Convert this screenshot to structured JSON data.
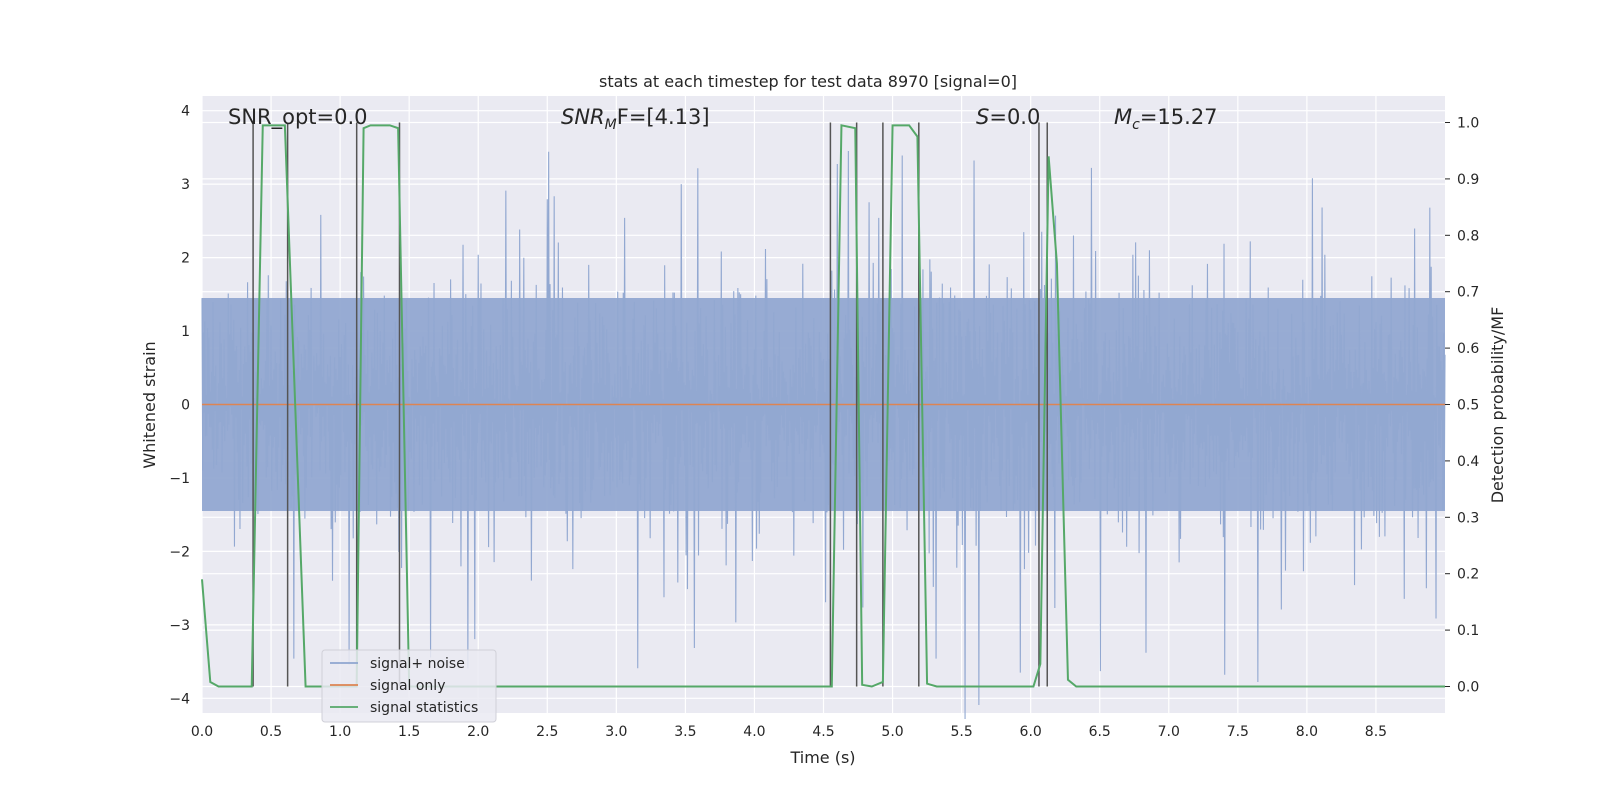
{
  "chart_data": {
    "type": "line",
    "title": "stats at each timestep for test data 8970 [signal=0]",
    "xlabel": "Time (s)",
    "ylabel": "Whitened strain",
    "ylabel_right": "Detection probability/MF",
    "xlim": [
      0.0,
      9.0
    ],
    "ylim": [
      -4.2,
      4.2
    ],
    "ylim_right": [
      -0.047,
      1.047
    ],
    "xticks": [
      "0.0",
      "0.5",
      "1.0",
      "1.5",
      "2.0",
      "2.5",
      "3.0",
      "3.5",
      "4.0",
      "4.5",
      "5.0",
      "5.5",
      "6.0",
      "6.5",
      "7.0",
      "7.5",
      "8.0",
      "8.5"
    ],
    "yticks": [
      "4",
      "3",
      "2",
      "1",
      "0",
      "−1",
      "−2",
      "−3",
      "−4"
    ],
    "yticks_right": [
      "1.0",
      "0.9",
      "0.8",
      "0.7",
      "0.6",
      "0.5",
      "0.4",
      "0.3",
      "0.2",
      "0.1",
      "0.0"
    ],
    "grid": true,
    "annotations": [
      {
        "text": "SNR_opt=0.0",
        "x": 0.19
      },
      {
        "text": "F=[4.13]",
        "prefix": "SNR",
        "sub": "M",
        "x": 2.6
      },
      {
        "text": "=0.0",
        "prefix": "S",
        "x": 5.6
      },
      {
        "text": "=15.27",
        "prefix": "M",
        "sub": "c",
        "x": 6.6
      }
    ],
    "legend": {
      "placement": "lower-left",
      "entries": [
        {
          "label": "signal+ noise",
          "color": "#8fa6cf"
        },
        {
          "label": "signal only",
          "color": "#dd8452"
        },
        {
          "label": "signal statistics",
          "color": "#55a868"
        }
      ]
    },
    "series": [
      {
        "name": "signal+ noise",
        "kind": "noise",
        "color": "#92a8d1",
        "envelope": 1.45,
        "peak": 3.8
      },
      {
        "name": "signal only",
        "kind": "flat",
        "color": "#dd8452",
        "value": 0.0
      },
      {
        "name": "signal statistics",
        "kind": "line",
        "axis": "right",
        "color": "#55a868",
        "points": [
          [
            0.0,
            0.19
          ],
          [
            0.06,
            0.008
          ],
          [
            0.12,
            0.0
          ],
          [
            0.36,
            0.0
          ],
          [
            0.44,
            0.995
          ],
          [
            0.6,
            0.995
          ],
          [
            0.75,
            0.0
          ],
          [
            1.12,
            0.0
          ],
          [
            1.17,
            0.99
          ],
          [
            1.22,
            0.995
          ],
          [
            1.36,
            0.995
          ],
          [
            1.42,
            0.99
          ],
          [
            1.5,
            0.0
          ],
          [
            4.42,
            0.0
          ],
          [
            4.56,
            0.0
          ],
          [
            4.63,
            0.995
          ],
          [
            4.73,
            0.99
          ],
          [
            4.78,
            0.003
          ],
          [
            4.85,
            0.0
          ],
          [
            4.93,
            0.008
          ],
          [
            5.0,
            0.995
          ],
          [
            5.12,
            0.995
          ],
          [
            5.18,
            0.975
          ],
          [
            5.25,
            0.005
          ],
          [
            5.32,
            0.0
          ],
          [
            6.02,
            0.0
          ],
          [
            6.07,
            0.04
          ],
          [
            6.13,
            0.94
          ],
          [
            6.19,
            0.75
          ],
          [
            6.27,
            0.012
          ],
          [
            6.33,
            0.0
          ],
          [
            9.0,
            0.0
          ]
        ]
      }
    ],
    "markers": [
      0.37,
      0.62,
      1.12,
      1.43,
      4.55,
      4.74,
      4.93,
      5.19,
      6.06,
      6.12
    ]
  }
}
